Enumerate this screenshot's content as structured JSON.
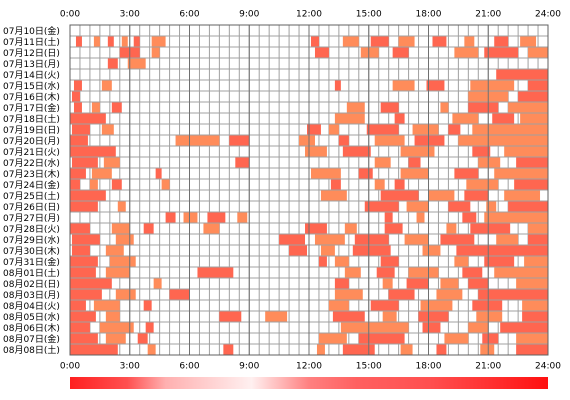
{
  "chart_data": {
    "type": "timeline",
    "xlim": [
      0,
      24
    ],
    "xticks": [
      {
        "value": 0,
        "label": "0:00"
      },
      {
        "value": 3,
        "label": "3:00"
      },
      {
        "value": 6,
        "label": "6:00"
      },
      {
        "value": 9,
        "label": "9:00"
      },
      {
        "value": 12,
        "label": "12:00"
      },
      {
        "value": 15,
        "label": "15:00"
      },
      {
        "value": 18,
        "label": "18:00"
      },
      {
        "value": 21,
        "label": "21:00"
      },
      {
        "value": 24,
        "label": "24:00"
      }
    ],
    "minor_step": 0.5,
    "colors": [
      "#ff6650",
      "#ff8c5a"
    ],
    "rows": [
      {
        "label": "07月10日(金)",
        "spans": []
      },
      {
        "label": "07月11日(土)",
        "spans": [
          [
            0.3,
            0.6
          ],
          [
            1.2,
            1.5
          ],
          [
            1.9,
            2.2
          ],
          [
            2.6,
            2.9
          ],
          [
            3.2,
            3.5
          ],
          [
            4.1,
            4.8
          ],
          [
            12.1,
            12.5
          ],
          [
            13.7,
            14.5
          ],
          [
            15.1,
            16.0
          ],
          [
            16.5,
            17.3
          ],
          [
            18.2,
            18.9
          ],
          [
            19.8,
            20.3
          ],
          [
            21.3,
            22.0
          ],
          [
            22.6,
            23.4
          ]
        ]
      },
      {
        "label": "07月12日(日)",
        "spans": [
          [
            2.5,
            3.5
          ],
          [
            4.1,
            4.5
          ],
          [
            12.3,
            13.0
          ],
          [
            14.6,
            15.5
          ],
          [
            16.2,
            17.0
          ],
          [
            19.3,
            20.5
          ],
          [
            20.8,
            22.5
          ],
          [
            23.0,
            24.0
          ]
        ]
      },
      {
        "label": "07月13日(月)",
        "spans": [
          [
            1.9,
            2.4
          ],
          [
            2.9,
            3.8
          ]
        ]
      },
      {
        "label": "07月14日(火)",
        "spans": [
          [
            21.4,
            24.0
          ]
        ]
      },
      {
        "label": "07月15日(水)",
        "spans": [
          [
            0.2,
            0.6
          ],
          [
            1.6,
            2.1
          ],
          [
            13.3,
            13.6
          ],
          [
            16.2,
            17.3
          ],
          [
            17.9,
            18.8
          ],
          [
            20.1,
            22.3
          ],
          [
            23.0,
            24.0
          ]
        ]
      },
      {
        "label": "07月16日(木)",
        "spans": [
          [
            0.1,
            0.5
          ],
          [
            20.0,
            22.0
          ],
          [
            22.5,
            24.0
          ]
        ]
      },
      {
        "label": "07月17日(金)",
        "spans": [
          [
            0.2,
            0.6
          ],
          [
            1.1,
            1.5
          ],
          [
            2.1,
            2.6
          ],
          [
            13.9,
            14.8
          ],
          [
            15.6,
            16.5
          ],
          [
            18.6,
            19.0
          ],
          [
            20.0,
            21.5
          ],
          [
            22.0,
            24.0
          ]
        ]
      },
      {
        "label": "07月18日(土)",
        "spans": [
          [
            0.0,
            1.8
          ],
          [
            13.3,
            14.8
          ],
          [
            16.3,
            16.8
          ],
          [
            19.2,
            20.5
          ],
          [
            21.2,
            22.3
          ],
          [
            22.6,
            24.0
          ]
        ]
      },
      {
        "label": "07月19日(日)",
        "spans": [
          [
            0.1,
            1.0
          ],
          [
            1.6,
            2.2
          ],
          [
            11.9,
            12.6
          ],
          [
            13.0,
            13.5
          ],
          [
            14.9,
            16.5
          ],
          [
            17.2,
            18.5
          ],
          [
            19.0,
            19.6
          ],
          [
            20.2,
            24.0
          ]
        ]
      },
      {
        "label": "07月20日(月)",
        "spans": [
          [
            0.0,
            0.9
          ],
          [
            5.3,
            7.5
          ],
          [
            8.0,
            9.0
          ],
          [
            11.5,
            12.3
          ],
          [
            13.5,
            14.0
          ],
          [
            15.3,
            16.8
          ],
          [
            17.3,
            18.8
          ],
          [
            19.5,
            24.0
          ]
        ]
      },
      {
        "label": "07月21日(火)",
        "spans": [
          [
            0.0,
            2.3
          ],
          [
            11.8,
            12.9
          ],
          [
            13.7,
            15.1
          ],
          [
            16.6,
            18.3
          ],
          [
            20.2,
            21.1
          ],
          [
            21.8,
            24.0
          ]
        ]
      },
      {
        "label": "07月22日(水)",
        "spans": [
          [
            0.1,
            1.4
          ],
          [
            1.7,
            2.5
          ],
          [
            8.3,
            9.0
          ],
          [
            15.3,
            16.1
          ],
          [
            17.0,
            17.6
          ],
          [
            20.5,
            21.6
          ],
          [
            22.4,
            24.0
          ]
        ]
      },
      {
        "label": "07月23日(木)",
        "spans": [
          [
            0.0,
            0.8
          ],
          [
            1.1,
            2.1
          ],
          [
            4.3,
            4.6
          ],
          [
            12.1,
            13.6
          ],
          [
            14.5,
            15.2
          ],
          [
            16.6,
            18.0
          ],
          [
            19.3,
            20.5
          ],
          [
            21.3,
            24.0
          ]
        ]
      },
      {
        "label": "07月24日(金)",
        "spans": [
          [
            0.0,
            0.5
          ],
          [
            1.0,
            1.4
          ],
          [
            2.1,
            2.6
          ],
          [
            4.6,
            5.0
          ],
          [
            13.1,
            13.6
          ],
          [
            15.3,
            15.8
          ],
          [
            16.3,
            16.8
          ],
          [
            19.9,
            21.5
          ],
          [
            22.3,
            24.0
          ]
        ]
      },
      {
        "label": "07月25日(土)",
        "spans": [
          [
            0.0,
            1.8
          ],
          [
            12.6,
            13.9
          ],
          [
            15.6,
            17.5
          ],
          [
            18.0,
            19.3
          ],
          [
            19.8,
            21.0
          ],
          [
            21.8,
            23.6
          ]
        ]
      },
      {
        "label": "07月26日(日)",
        "spans": [
          [
            0.0,
            1.4
          ],
          [
            2.4,
            2.8
          ],
          [
            14.8,
            16.5
          ],
          [
            16.9,
            18.0
          ],
          [
            19.0,
            20.1
          ],
          [
            20.9,
            21.4
          ],
          [
            22.0,
            24.0
          ]
        ]
      },
      {
        "label": "07月27日(月)",
        "spans": [
          [
            4.8,
            5.3
          ],
          [
            5.7,
            6.4
          ],
          [
            6.9,
            7.8
          ],
          [
            8.4,
            8.9
          ],
          [
            15.8,
            16.2
          ],
          [
            17.4,
            17.8
          ],
          [
            19.7,
            20.4
          ],
          [
            20.8,
            24.0
          ]
        ]
      },
      {
        "label": "07月28日(火)",
        "spans": [
          [
            0.0,
            1.0
          ],
          [
            2.1,
            3.0
          ],
          [
            3.7,
            4.2
          ],
          [
            6.7,
            7.5
          ],
          [
            11.8,
            12.9
          ],
          [
            13.8,
            14.4
          ],
          [
            15.8,
            16.7
          ],
          [
            18.9,
            19.4
          ],
          [
            20.1,
            22.1
          ],
          [
            23.0,
            24.0
          ]
        ]
      },
      {
        "label": "07月29日(水)",
        "spans": [
          [
            0.1,
            1.5
          ],
          [
            2.3,
            3.2
          ],
          [
            10.5,
            11.8
          ],
          [
            12.3,
            13.8
          ],
          [
            14.3,
            16.0
          ],
          [
            16.8,
            18.0
          ],
          [
            18.6,
            20.3
          ],
          [
            21.4,
            22.5
          ],
          [
            23.0,
            24.0
          ]
        ]
      },
      {
        "label": "07月30日(木)",
        "spans": [
          [
            0.1,
            1.0
          ],
          [
            1.8,
            2.7
          ],
          [
            11.0,
            11.9
          ],
          [
            12.6,
            13.3
          ],
          [
            14.2,
            16.1
          ],
          [
            17.7,
            18.6
          ],
          [
            19.4,
            24.0
          ]
        ]
      },
      {
        "label": "07月31日(金)",
        "spans": [
          [
            0.0,
            1.4
          ],
          [
            2.0,
            3.3
          ],
          [
            12.5,
            12.9
          ],
          [
            13.3,
            14.0
          ],
          [
            15.6,
            16.5
          ],
          [
            19.3,
            20.0
          ],
          [
            20.8,
            22.3
          ],
          [
            22.8,
            24.0
          ]
        ]
      },
      {
        "label": "08月01日(土)",
        "spans": [
          [
            0.0,
            1.3
          ],
          [
            1.8,
            3.0
          ],
          [
            6.4,
            8.2
          ],
          [
            13.8,
            14.6
          ],
          [
            15.4,
            16.3
          ],
          [
            17.0,
            18.5
          ],
          [
            19.7,
            20.7
          ],
          [
            21.3,
            24.0
          ]
        ]
      },
      {
        "label": "08月02日(日)",
        "spans": [
          [
            0.0,
            2.1
          ],
          [
            4.2,
            4.6
          ],
          [
            13.3,
            14.0
          ],
          [
            15.7,
            16.2
          ],
          [
            16.9,
            18.0
          ],
          [
            18.6,
            19.5
          ],
          [
            20.0,
            21.0
          ],
          [
            22.4,
            24.0
          ]
        ]
      },
      {
        "label": "08月03日(月)",
        "spans": [
          [
            0.0,
            1.6
          ],
          [
            2.3,
            3.3
          ],
          [
            5.0,
            6.0
          ],
          [
            13.3,
            14.7
          ],
          [
            16.0,
            17.3
          ],
          [
            18.4,
            19.7
          ],
          [
            20.5,
            24.0
          ]
        ]
      },
      {
        "label": "08月04日(火)",
        "spans": [
          [
            0.0,
            0.8
          ],
          [
            1.2,
            2.5
          ],
          [
            3.7,
            4.1
          ],
          [
            13.0,
            14.0
          ],
          [
            15.1,
            16.5
          ],
          [
            17.6,
            19.2
          ],
          [
            20.2,
            21.7
          ],
          [
            22.7,
            24.0
          ]
        ]
      },
      {
        "label": "08月05日(水)",
        "spans": [
          [
            0.0,
            1.3
          ],
          [
            1.8,
            2.5
          ],
          [
            7.5,
            8.6
          ],
          [
            9.8,
            10.9
          ],
          [
            13.2,
            14.8
          ],
          [
            15.7,
            16.4
          ],
          [
            17.5,
            19.0
          ],
          [
            20.4,
            21.7
          ],
          [
            22.7,
            24.0
          ]
        ]
      },
      {
        "label": "08月06日(木)",
        "spans": [
          [
            0.0,
            1.0
          ],
          [
            1.5,
            3.2
          ],
          [
            3.8,
            4.2
          ],
          [
            13.6,
            17.0
          ],
          [
            17.7,
            18.6
          ],
          [
            20.0,
            21.0
          ],
          [
            21.6,
            24.0
          ]
        ]
      },
      {
        "label": "08月07日(金)",
        "spans": [
          [
            0.0,
            1.4
          ],
          [
            1.8,
            2.8
          ],
          [
            3.4,
            3.9
          ],
          [
            12.5,
            13.9
          ],
          [
            14.5,
            16.8
          ],
          [
            18.8,
            20.0
          ],
          [
            20.7,
            21.5
          ],
          [
            22.4,
            24.0
          ]
        ]
      },
      {
        "label": "08月08日(土)",
        "spans": [
          [
            0.0,
            2.4
          ],
          [
            3.9,
            4.3
          ],
          [
            7.7,
            8.2
          ],
          [
            12.4,
            12.8
          ],
          [
            13.7,
            15.3
          ],
          [
            16.6,
            17.2
          ],
          [
            18.4,
            18.9
          ],
          [
            20.6,
            21.3
          ],
          [
            22.4,
            24.0
          ]
        ]
      }
    ]
  }
}
